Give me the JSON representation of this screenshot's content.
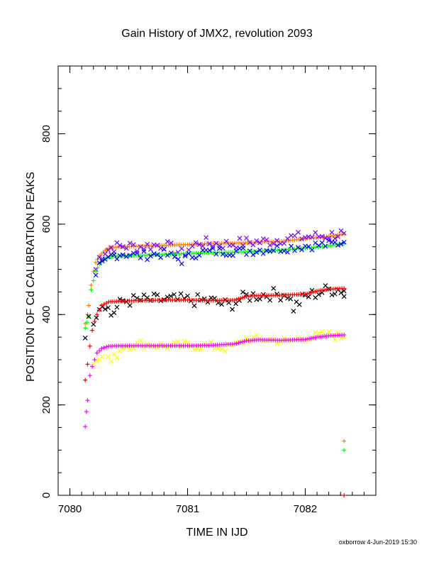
{
  "chart_data": {
    "type": "scatter",
    "title": "Gain History of JMX2, revolution 2093",
    "xlabel": "TIME IN IJD",
    "ylabel": "POSITION OF Cd CALIBRATION PEAKS",
    "footer": "oxborrow  4-Jun-2019 15:30",
    "xlim": [
      7079.9,
      7082.6
    ],
    "ylim": [
      0,
      950
    ],
    "xticks": [
      7080,
      7081,
      7082
    ],
    "yticks": [
      0,
      200,
      400,
      600,
      800
    ],
    "grid": false,
    "legend": "none",
    "series": [
      {
        "color": "#ff8000",
        "marker": "plus",
        "fit_of": "purple",
        "points": [
          [
            7080.13,
            380
          ],
          [
            7080.15,
            400
          ],
          [
            7080.16,
            420
          ],
          [
            7080.18,
            465
          ],
          [
            7080.2,
            495
          ],
          [
            7080.22,
            515
          ],
          [
            7080.25,
            530
          ],
          [
            7080.3,
            542
          ],
          [
            7080.35,
            548
          ],
          [
            7080.45,
            550
          ],
          [
            7080.6,
            551
          ],
          [
            7080.8,
            553
          ],
          [
            7081.0,
            555
          ],
          [
            7081.2,
            557
          ],
          [
            7081.4,
            558
          ],
          [
            7081.6,
            560
          ],
          [
            7081.8,
            562
          ],
          [
            7082.0,
            568
          ],
          [
            7082.2,
            573
          ],
          [
            7082.33,
            578
          ],
          [
            7082.33,
            120
          ]
        ]
      },
      {
        "color": "#8000ff",
        "marker": "cross",
        "noise": 12,
        "points": [
          [
            7080.22,
            500
          ],
          [
            7080.25,
            525
          ],
          [
            7080.3,
            540
          ],
          [
            7080.35,
            548
          ],
          [
            7080.45,
            552
          ],
          [
            7080.6,
            550
          ],
          [
            7080.8,
            555
          ],
          [
            7080.95,
            535
          ],
          [
            7081.1,
            560
          ],
          [
            7081.3,
            555
          ],
          [
            7081.5,
            560
          ],
          [
            7081.7,
            562
          ],
          [
            7081.85,
            570
          ],
          [
            7082.0,
            572
          ],
          [
            7082.2,
            575
          ],
          [
            7082.33,
            580
          ]
        ]
      },
      {
        "color": "#00ff00",
        "marker": "plus",
        "fit_of": "blue",
        "points": [
          [
            7080.13,
            370
          ],
          [
            7080.16,
            395
          ],
          [
            7080.18,
            455
          ],
          [
            7080.2,
            475
          ],
          [
            7080.22,
            495
          ],
          [
            7080.25,
            512
          ],
          [
            7080.3,
            524
          ],
          [
            7080.35,
            528
          ],
          [
            7080.45,
            530
          ],
          [
            7080.6,
            531
          ],
          [
            7080.8,
            533
          ],
          [
            7081.0,
            535
          ],
          [
            7081.2,
            537
          ],
          [
            7081.4,
            538
          ],
          [
            7081.6,
            540
          ],
          [
            7081.8,
            543
          ],
          [
            7082.0,
            547
          ],
          [
            7082.2,
            552
          ],
          [
            7082.33,
            557
          ],
          [
            7082.33,
            100
          ]
        ]
      },
      {
        "color": "#0000ff",
        "marker": "cross",
        "noise": 10,
        "points": [
          [
            7080.22,
            480
          ],
          [
            7080.25,
            505
          ],
          [
            7080.3,
            515
          ],
          [
            7080.35,
            530
          ],
          [
            7080.45,
            535
          ],
          [
            7080.6,
            530
          ],
          [
            7080.8,
            535
          ],
          [
            7080.95,
            520
          ],
          [
            7081.1,
            538
          ],
          [
            7081.3,
            540
          ],
          [
            7081.5,
            540
          ],
          [
            7081.7,
            545
          ],
          [
            7081.85,
            548
          ],
          [
            7082.0,
            552
          ],
          [
            7082.2,
            555
          ],
          [
            7082.33,
            560
          ]
        ]
      },
      {
        "color": "#000000",
        "marker": "cross",
        "noise": 14,
        "points": [
          [
            7080.13,
            360
          ],
          [
            7080.16,
            385
          ],
          [
            7080.2,
            390
          ],
          [
            7080.25,
            420
          ],
          [
            7080.3,
            425
          ],
          [
            7080.35,
            400
          ],
          [
            7080.45,
            430
          ],
          [
            7080.6,
            432
          ],
          [
            7080.8,
            433
          ],
          [
            7081.0,
            432
          ],
          [
            7081.2,
            430
          ],
          [
            7081.35,
            420
          ],
          [
            7081.5,
            440
          ],
          [
            7081.7,
            445
          ],
          [
            7081.85,
            445
          ],
          [
            7081.9,
            415
          ],
          [
            7082.0,
            440
          ],
          [
            7082.2,
            455
          ],
          [
            7082.33,
            455
          ],
          [
            7082.33,
            440
          ]
        ]
      },
      {
        "color": "#ff0000",
        "marker": "plus",
        "fit_of": "black",
        "points": [
          [
            7080.13,
            255
          ],
          [
            7080.15,
            290
          ],
          [
            7080.17,
            330
          ],
          [
            7080.19,
            365
          ],
          [
            7080.21,
            385
          ],
          [
            7080.23,
            400
          ],
          [
            7080.27,
            420
          ],
          [
            7080.33,
            428
          ],
          [
            7080.45,
            430
          ],
          [
            7080.6,
            431
          ],
          [
            7080.8,
            432
          ],
          [
            7081.0,
            432
          ],
          [
            7081.2,
            431
          ],
          [
            7081.4,
            432
          ],
          [
            7081.5,
            440
          ],
          [
            7081.6,
            442
          ],
          [
            7081.8,
            443
          ],
          [
            7082.0,
            445
          ],
          [
            7082.1,
            452
          ],
          [
            7082.2,
            456
          ],
          [
            7082.33,
            458
          ],
          [
            7082.33,
            0
          ]
        ]
      },
      {
        "color": "#ffff00",
        "marker": "cross",
        "noise": 10,
        "points": [
          [
            7080.2,
            290
          ],
          [
            7080.25,
            310
          ],
          [
            7080.3,
            320
          ],
          [
            7080.35,
            295
          ],
          [
            7080.45,
            330
          ],
          [
            7080.6,
            335
          ],
          [
            7080.8,
            330
          ],
          [
            7081.0,
            332
          ],
          [
            7081.2,
            330
          ],
          [
            7081.35,
            325
          ],
          [
            7081.5,
            345
          ],
          [
            7081.7,
            345
          ],
          [
            7081.85,
            340
          ],
          [
            7082.0,
            350
          ],
          [
            7082.2,
            355
          ],
          [
            7082.33,
            350
          ]
        ]
      },
      {
        "color": "#ff00ff",
        "marker": "plus",
        "fit_of": "yellow",
        "points": [
          [
            7080.13,
            152
          ],
          [
            7080.14,
            185
          ],
          [
            7080.15,
            210
          ],
          [
            7080.17,
            265
          ],
          [
            7080.19,
            285
          ],
          [
            7080.21,
            300
          ],
          [
            7080.23,
            315
          ],
          [
            7080.27,
            325
          ],
          [
            7080.33,
            330
          ],
          [
            7080.45,
            331
          ],
          [
            7080.6,
            331
          ],
          [
            7080.8,
            331
          ],
          [
            7081.0,
            331
          ],
          [
            7081.2,
            332
          ],
          [
            7081.4,
            335
          ],
          [
            7081.5,
            342
          ],
          [
            7081.6,
            344
          ],
          [
            7081.8,
            343
          ],
          [
            7082.0,
            345
          ],
          [
            7082.1,
            350
          ],
          [
            7082.2,
            353
          ],
          [
            7082.33,
            355
          ]
        ]
      }
    ]
  }
}
